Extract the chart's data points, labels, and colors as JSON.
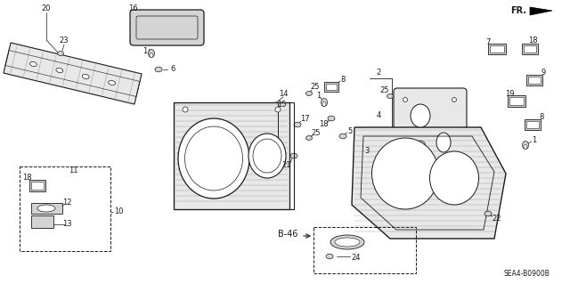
{
  "background_color": "#ffffff",
  "figsize": [
    6.4,
    3.19
  ],
  "dpi": 100,
  "diagram_code": "SEA4-B0900B",
  "line_color": "#1a1a1a",
  "hatch_color": "#888888",
  "part_fill": "#d4d4d4",
  "light_fill": "#e8e8e8"
}
